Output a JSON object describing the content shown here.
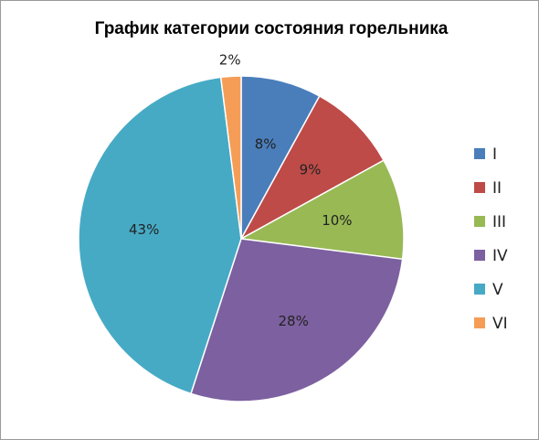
{
  "chart_data": {
    "type": "pie",
    "title": "График категории состояния горельника",
    "categories": [
      "I",
      "II",
      "III",
      "IV",
      "V",
      "VI"
    ],
    "values": [
      8,
      9,
      10,
      28,
      43,
      2
    ],
    "data_labels": [
      "8%",
      "9%",
      "10%",
      "28%",
      "43%",
      "2%"
    ],
    "colors": [
      "#4a7ebb",
      "#be4b48",
      "#98b954",
      "#7d60a0",
      "#46aac5",
      "#f59d56"
    ],
    "legend_position": "right",
    "start_angle": "12 o'clock, clockwise"
  }
}
